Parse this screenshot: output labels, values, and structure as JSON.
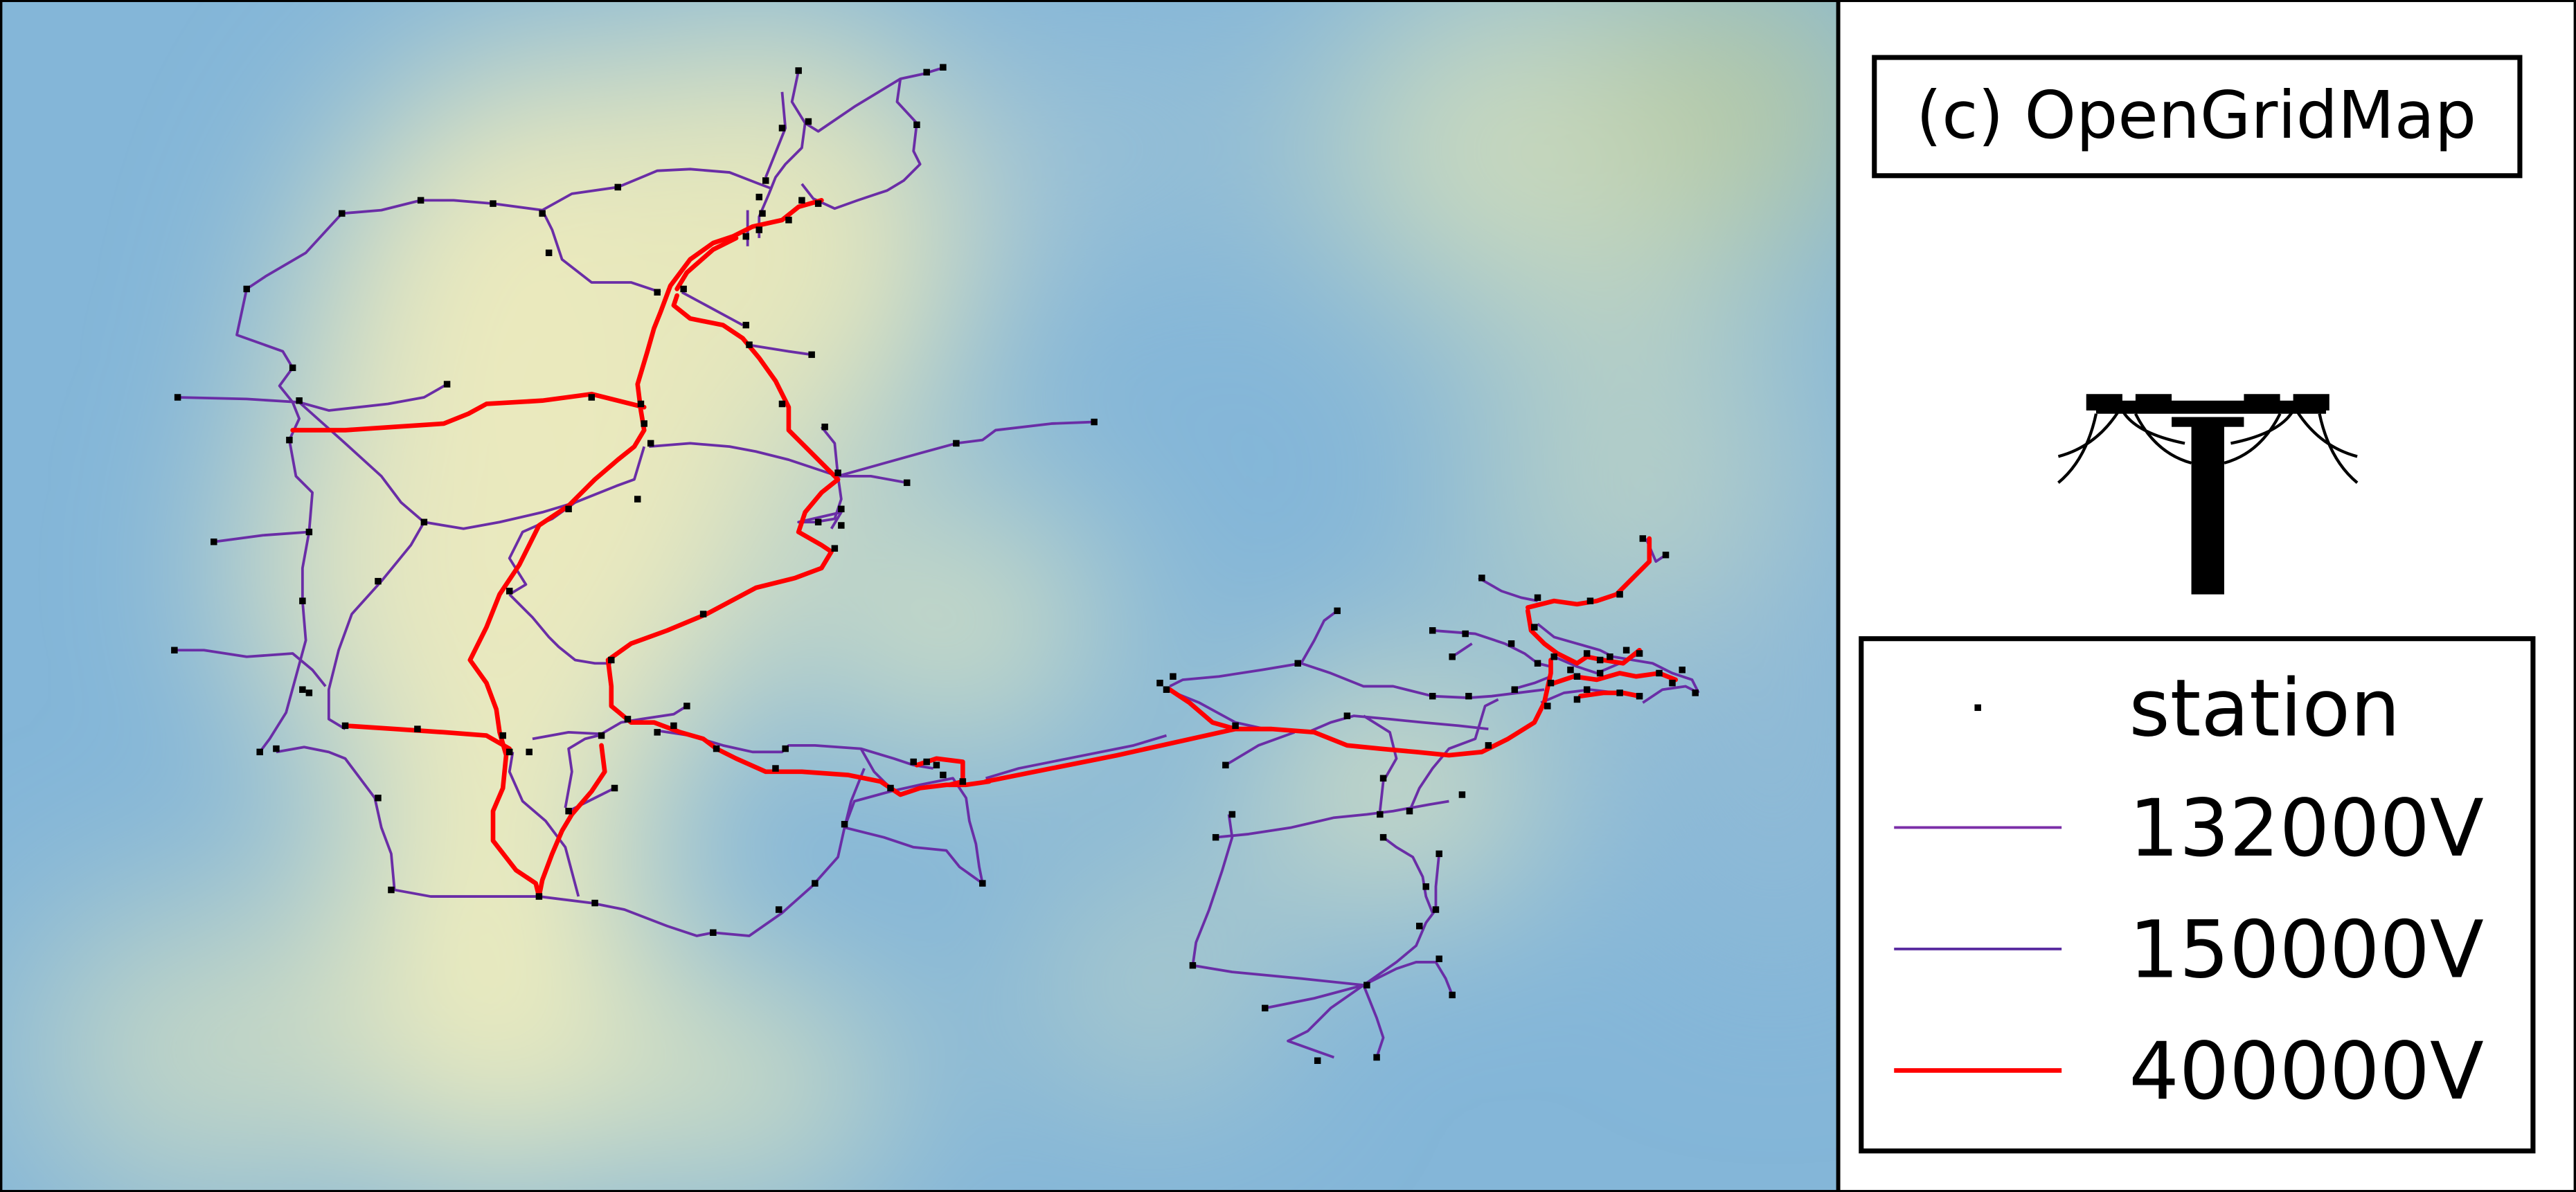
{
  "copyright": "(c) OpenGridMap",
  "logo": "power-pole-icon",
  "legend": {
    "items": [
      {
        "label": "station",
        "type": "marker",
        "color": "#000000"
      },
      {
        "label": "132000V",
        "type": "line",
        "color": "#7b2fa8"
      },
      {
        "label": "150000V",
        "type": "line",
        "color": "#5a2ca0"
      },
      {
        "label": "400000V",
        "type": "line",
        "color": "#ff0000"
      }
    ]
  },
  "colors": {
    "line_132kv": "#7b2fa8",
    "line_150kv": "#5a2ca0",
    "line_400kv": "#ff0000",
    "station": "#000000",
    "background_low": "#82b6d8",
    "background_high": "#ecebbf"
  }
}
